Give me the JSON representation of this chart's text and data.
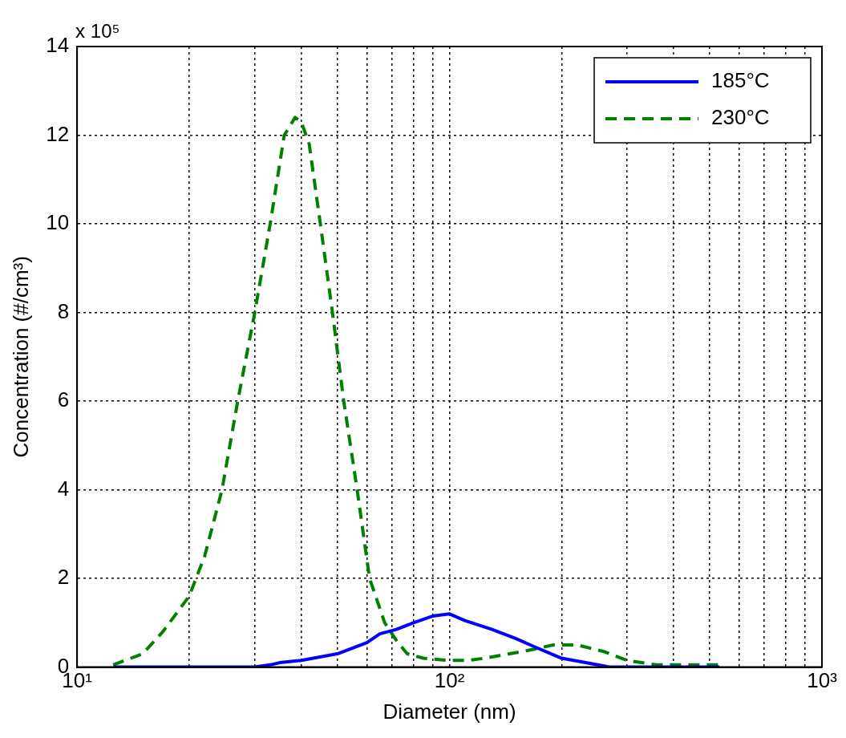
{
  "chart_data": {
    "type": "line",
    "xlabel": "Diameter (nm)",
    "ylabel": "Concentration (#/cm³)",
    "annotations": [
      "x 10⁵"
    ],
    "log": "x",
    "grid": true,
    "legend": "top right",
    "marker": "none",
    "xlim": [
      10,
      1000
    ],
    "xticks": [
      {
        "value": 10,
        "label": "10¹"
      },
      {
        "value": 20,
        "label": null
      },
      {
        "value": 30,
        "label": null
      },
      {
        "value": 40,
        "label": null
      },
      {
        "value": 50,
        "label": null
      },
      {
        "value": 60,
        "label": null
      },
      {
        "value": 70,
        "label": null
      },
      {
        "value": 80,
        "label": null
      },
      {
        "value": 90,
        "label": null
      },
      {
        "value": 100,
        "label": "10²"
      },
      {
        "value": 200,
        "label": null
      },
      {
        "value": 300,
        "label": null
      },
      {
        "value": 400,
        "label": null
      },
      {
        "value": 500,
        "label": null
      },
      {
        "value": 600,
        "label": null
      },
      {
        "value": 700,
        "label": null
      },
      {
        "value": 800,
        "label": null
      },
      {
        "value": 900,
        "label": null
      },
      {
        "value": 1000,
        "label": "10³"
      }
    ],
    "ylim": [
      0,
      14
    ],
    "yticks": [
      0,
      2,
      4,
      6,
      8,
      10,
      12,
      14
    ],
    "series": [
      {
        "name": "185°C",
        "color": "#0000ff",
        "line_style": "solid",
        "x": [
          12.5,
          20,
          30,
          33,
          35,
          40,
          50,
          60,
          65,
          72,
          80,
          90,
          100,
          110,
          130,
          150,
          170,
          200,
          250,
          270,
          400,
          530
        ],
        "values": [
          0,
          0,
          0,
          0.05,
          0.1,
          0.15,
          0.3,
          0.55,
          0.75,
          0.85,
          1.0,
          1.15,
          1.2,
          1.05,
          0.85,
          0.65,
          0.45,
          0.2,
          0.05,
          0,
          0,
          0
        ]
      },
      {
        "name": "230°C",
        "color": "#008000",
        "line_style": "dashed",
        "x": [
          12.5,
          15,
          17,
          20,
          22,
          24.5,
          27,
          30,
          33,
          36,
          38.5,
          40,
          42,
          45,
          48.5,
          52,
          56.5,
          61,
          67,
          72,
          77,
          85,
          99,
          112,
          124,
          145,
          168,
          190,
          220,
          260,
          300,
          360,
          530
        ],
        "values": [
          0.05,
          0.3,
          0.8,
          1.6,
          2.5,
          4,
          6,
          8,
          10,
          12,
          12.4,
          12.3,
          11.8,
          10,
          8,
          6,
          4,
          2,
          1,
          0.6,
          0.3,
          0.2,
          0.15,
          0.15,
          0.2,
          0.3,
          0.4,
          0.5,
          0.5,
          0.35,
          0.15,
          0.05,
          0.05
        ]
      }
    ]
  }
}
